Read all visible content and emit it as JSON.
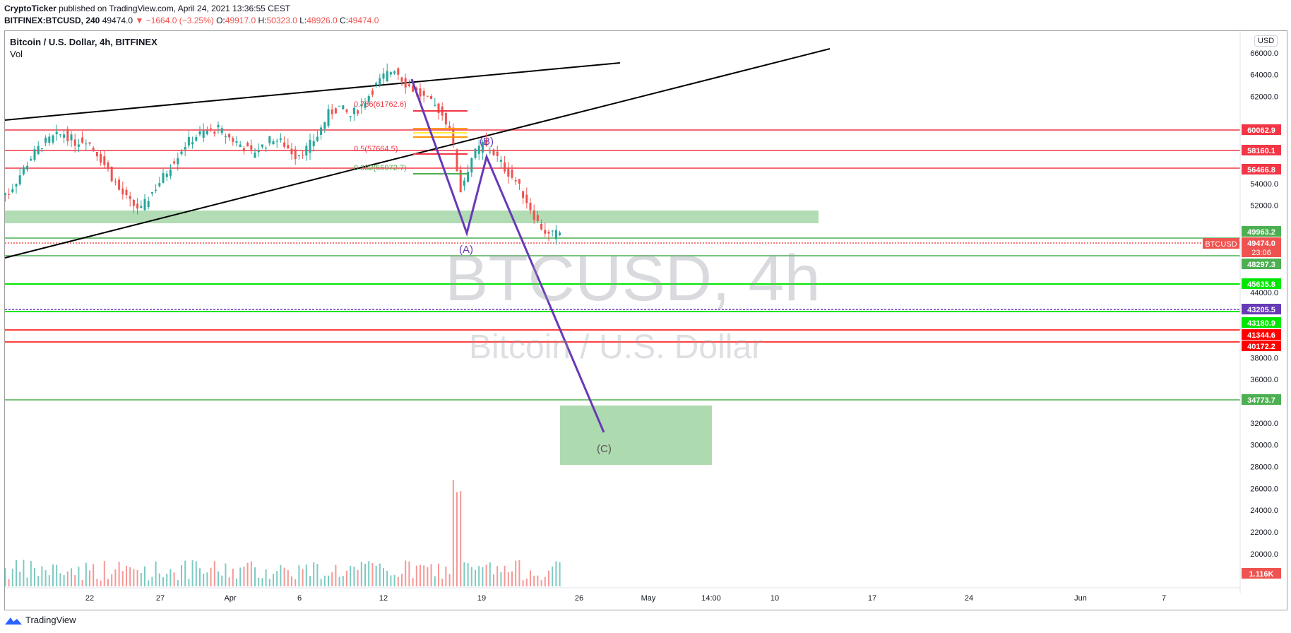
{
  "header": {
    "author": "CryptoTicker",
    "published_text": "published on TradingView.com, April 24, 2021 13:36:55 CEST",
    "symbol": "BITFINEX:BTCUSD, 240",
    "last": "49474.0",
    "change": "−1664.0 (−3.25%)",
    "o_label": "O:",
    "o_value": "49917.0",
    "h_label": "H:",
    "h_value": "50323.0",
    "l_label": "L:",
    "l_value": "48926.0",
    "c_label": "C:",
    "c_value": "49474.0"
  },
  "chart_title": "Bitcoin / U.S. Dollar, 4h, BITFINEX",
  "volume_label": "Vol",
  "currency": "USD",
  "watermark": {
    "symbol": "BTCUSD, 4h",
    "name": "Bitcoin / U.S. Dollar"
  },
  "footer": {
    "brand": "TradingView"
  },
  "chart_data": {
    "type": "candlestick",
    "title": "Bitcoin / U.S. Dollar, 4h, BITFINEX",
    "x_ticks": [
      "22",
      "27",
      "Apr",
      "6",
      "12",
      "19",
      "26",
      "May",
      "14:00",
      "10",
      "17",
      "24",
      "Jun",
      "7"
    ],
    "y_ticks": [
      18000,
      20000,
      22000,
      24000,
      26000,
      28000,
      30000,
      32000,
      34000,
      36000,
      38000,
      40000,
      44000,
      52000,
      54000,
      62000,
      64000,
      66000
    ],
    "ylim": [
      17000,
      68000
    ],
    "price_close": [
      53200,
      54800,
      56400,
      57600,
      58200,
      58600,
      57800,
      58100,
      56800,
      55200,
      53400,
      52200,
      51600,
      53200,
      54600,
      56200,
      57600,
      58400,
      58800,
      59000,
      58200,
      57600,
      56800,
      57400,
      58200,
      57600,
      56600,
      57200,
      58400,
      60400,
      61000,
      60200,
      61200,
      62600,
      63800,
      64600,
      63200,
      62400,
      61600,
      60800,
      59200,
      53400,
      56400,
      57600,
      56800,
      55400,
      54200,
      52400,
      50400,
      49200,
      49474
    ],
    "horizontal_levels": [
      {
        "label": "60062.9",
        "color": "#f23645"
      },
      {
        "label": "58160.1",
        "color": "#f23645"
      },
      {
        "label": "56466.8",
        "color": "#f23645"
      },
      {
        "label": "49963.2",
        "color": "#4caf50"
      },
      {
        "label": "49474.0",
        "color": "#ef5350"
      },
      {
        "label": "48297.3",
        "color": "#4caf50"
      },
      {
        "label": "45635.8",
        "color": "#00e600"
      },
      {
        "label": "43205.5",
        "color": "#673ab7"
      },
      {
        "label": "43180.9",
        "color": "#00e600"
      },
      {
        "label": "41344.6",
        "color": "#ff0000"
      },
      {
        "label": "40172.2",
        "color": "#ff0000"
      },
      {
        "label": "34773.7",
        "color": "#4caf50"
      }
    ],
    "last_price_tag": {
      "symbol": "BTCUSD",
      "value": "49474.0",
      "countdown": "23:06"
    },
    "volume_tag": "1.116K",
    "fib_labels": [
      "0.786(61762.6)",
      "0.5(57664.5)",
      "0.382(55972.7)"
    ],
    "wave_labels": [
      "(A)",
      "(B)",
      "(C)"
    ],
    "colors": {
      "up": "#26a69a",
      "down": "#ef5350",
      "wave": "#673ab7",
      "zone": "#a5d6a7",
      "trend": "#000000"
    }
  }
}
